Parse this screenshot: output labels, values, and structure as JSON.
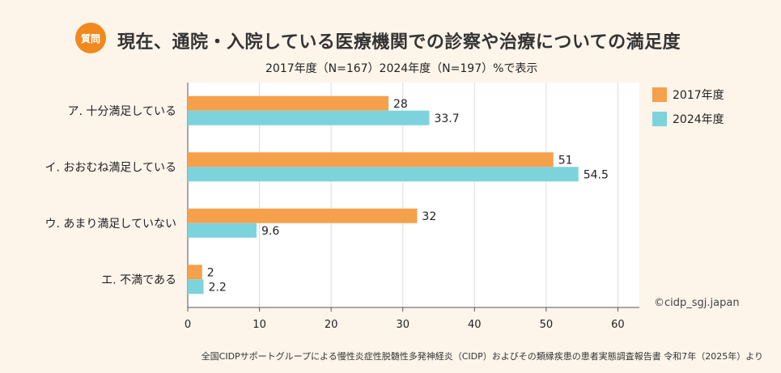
{
  "header": {
    "badge": "質問",
    "title": "現在、通院・入院している医療機関での診察や治療についての満足度",
    "subtitle": "2017年度（N=167）2024年度（N=197）%で表示"
  },
  "colors": {
    "series_2017": "#f5a04a",
    "series_2024": "#7dd3dc",
    "badge": "#f08a1e",
    "background": "#fdf4ea"
  },
  "credit": "©cidp_sgj.japan",
  "source": "全国CIDPサポートグループによる慢性炎症性脱髄性多発神経炎（CIDP）およびその類縁疾患の患者実態調査報告書 令和7年（2025年）より",
  "chart_data": {
    "type": "bar",
    "orientation": "horizontal",
    "title": "現在、通院・入院している医療機関での診察や治療についての満足度",
    "categories": [
      "ア. 十分満足している",
      "イ. おおむね満足している",
      "ウ. あまり満足していない",
      "エ. 不満である"
    ],
    "series": [
      {
        "name": "2017年度",
        "values": [
          28,
          51,
          32,
          2
        ],
        "labels": [
          "28",
          "51",
          "32",
          "2"
        ]
      },
      {
        "name": "2024年度",
        "values": [
          33.7,
          54.5,
          9.6,
          2.2
        ],
        "labels": [
          "33.7",
          "54.5",
          "9.6",
          "2.2"
        ]
      }
    ],
    "xlim": [
      0,
      63
    ],
    "xticks": [
      0,
      10,
      20,
      30,
      40,
      50,
      60
    ],
    "xtick_labels": [
      "0",
      "10",
      "20",
      "30",
      "40",
      "50",
      "60"
    ],
    "grid": true,
    "legend": "top-right"
  }
}
